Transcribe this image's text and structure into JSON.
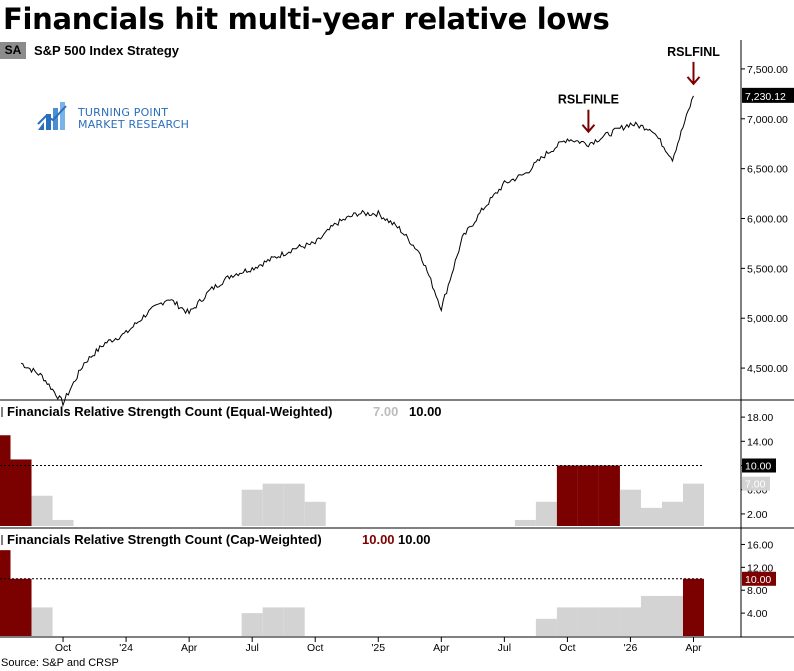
{
  "title": "Financials hit multi-year relative lows",
  "symbol_badge": "SA",
  "symbol_name": "S&P 500 Index  Strategy",
  "logo": {
    "icon": "bar-chart-icon",
    "line1": "TURNING POINT",
    "line2": "MARKET RESEARCH"
  },
  "source": "Source: S&P and CRSP",
  "colors": {
    "price": "#000000",
    "active": "#7b0000",
    "inactive": "#d3d3d3",
    "muted_text": "#bdbdbd"
  },
  "chart_data": [
    {
      "type": "line",
      "panel": "price",
      "series": [
        {
          "name": "S&P 500 Index",
          "x": [
            "2023-08",
            "2023-09",
            "2023-10",
            "2023-11",
            "2023-12",
            "2024-01",
            "2024-02",
            "2024-03",
            "2024-04",
            "2024-05",
            "2024-06",
            "2024-07",
            "2024-08",
            "2024-09",
            "2024-10",
            "2024-11",
            "2024-12",
            "2025-01",
            "2025-02",
            "2025-03",
            "2025-04",
            "2025-05",
            "2025-06",
            "2025-07",
            "2025-08",
            "2025-09",
            "2025-10",
            "2025-11",
            "2025-12",
            "2026-01",
            "2026-02",
            "2026-03",
            "2026-04"
          ],
          "y": [
            4550,
            4420,
            4150,
            4550,
            4750,
            4850,
            5050,
            5200,
            5050,
            5280,
            5430,
            5500,
            5600,
            5700,
            5750,
            5950,
            6050,
            6050,
            5900,
            5650,
            5100,
            5800,
            6100,
            6350,
            6450,
            6650,
            6800,
            6750,
            6850,
            6950,
            6900,
            6600,
            7230
          ]
        }
      ],
      "ylim": [
        4200,
        7750
      ],
      "yticks": [
        "4,500.00",
        "5,000.00",
        "5,500.00",
        "6,000.00",
        "6,500.00",
        "7,000.00",
        "7,500.00"
      ],
      "last_value_label": "7,230.12",
      "annotations": [
        {
          "label": "RSLFINLE",
          "x": "2025-11"
        },
        {
          "label": "RSLFINL",
          "x": "2026-04"
        }
      ],
      "xticks": [
        "Oct",
        "'24",
        "Apr",
        "Jul",
        "Oct",
        "'25",
        "Apr",
        "Jul",
        "Oct",
        "'26",
        "Apr"
      ]
    },
    {
      "type": "area",
      "panel": "equal-weighted",
      "title": "Financials Relative Strength Count (Equal-Weighted)",
      "legend_values": [
        "7.00",
        "10.00"
      ],
      "threshold": 10,
      "threshold_label": "10.00",
      "last_value_label": "7.00",
      "ylim": [
        0,
        20
      ],
      "yticks": [
        "2.00",
        "6.00",
        "10.00",
        "14.00",
        "18.00"
      ],
      "x": [
        "2023-07",
        "2023-08",
        "2023-09",
        "2023-10",
        "2023-11",
        "2023-12",
        "2024-01",
        "2024-02",
        "2024-03",
        "2024-04",
        "2024-05",
        "2024-06",
        "2024-07",
        "2024-08",
        "2024-09",
        "2024-10",
        "2024-11",
        "2024-12",
        "2025-01",
        "2025-02",
        "2025-03",
        "2025-04",
        "2025-05",
        "2025-06",
        "2025-07",
        "2025-08",
        "2025-09",
        "2025-10",
        "2025-11",
        "2025-12",
        "2026-01",
        "2026-02",
        "2026-03",
        "2026-04"
      ],
      "values": [
        15,
        11,
        5,
        1,
        0,
        0,
        0,
        0,
        0,
        0,
        0,
        0,
        6,
        7,
        7,
        4,
        0,
        0,
        0,
        0,
        0,
        0,
        0,
        0,
        0,
        1,
        4,
        10,
        10,
        10,
        6,
        3,
        4,
        7
      ]
    },
    {
      "type": "area",
      "panel": "cap-weighted",
      "title": "Financials Relative Strength Count (Cap-Weighted)",
      "legend_values": [
        "10.00",
        "10.00"
      ],
      "threshold": 10,
      "threshold_label": "10.00",
      "last_value_label": "10.00",
      "ylim": [
        0,
        18
      ],
      "yticks": [
        "4.00",
        "8.00",
        "12.00",
        "16.00"
      ],
      "x": [
        "2023-07",
        "2023-08",
        "2023-09",
        "2023-10",
        "2023-11",
        "2023-12",
        "2024-01",
        "2024-02",
        "2024-03",
        "2024-04",
        "2024-05",
        "2024-06",
        "2024-07",
        "2024-08",
        "2024-09",
        "2024-10",
        "2024-11",
        "2024-12",
        "2025-01",
        "2025-02",
        "2025-03",
        "2025-04",
        "2025-05",
        "2025-06",
        "2025-07",
        "2025-08",
        "2025-09",
        "2025-10",
        "2025-11",
        "2025-12",
        "2026-01",
        "2026-02",
        "2026-03",
        "2026-04"
      ],
      "values": [
        15,
        10,
        5,
        0,
        0,
        0,
        0,
        0,
        0,
        0,
        0,
        0,
        4,
        5,
        5,
        0,
        0,
        0,
        0,
        0,
        0,
        0,
        0,
        0,
        0,
        0,
        3,
        5,
        5,
        5,
        5,
        7,
        7,
        10
      ]
    }
  ]
}
